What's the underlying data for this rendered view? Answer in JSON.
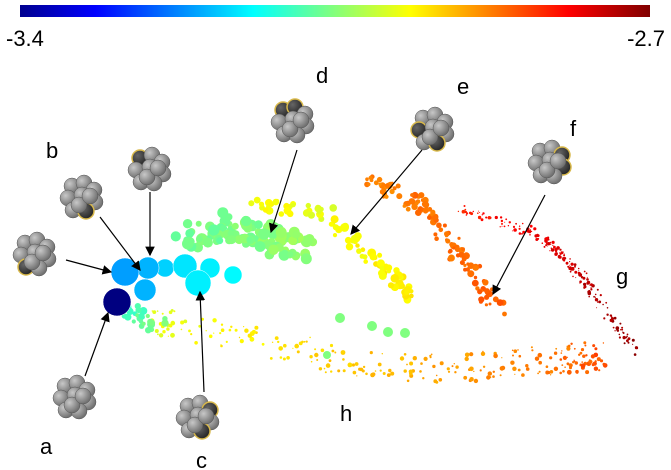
{
  "colorbar": {
    "min": -3.4,
    "max": -2.7
  },
  "labels": {
    "a": "a",
    "b": "b",
    "c": "c",
    "d": "d",
    "e": "e",
    "f": "f",
    "g": "g",
    "h": "h"
  }
}
